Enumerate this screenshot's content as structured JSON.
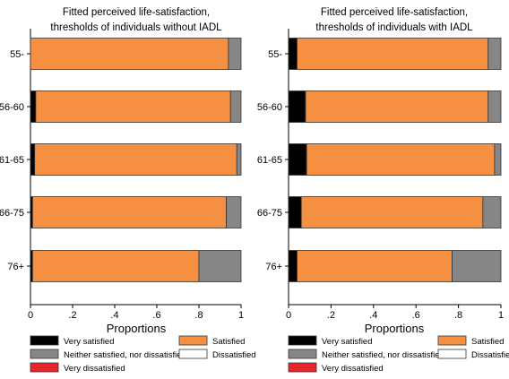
{
  "chart_data": [
    {
      "type": "bar",
      "orientation": "horizontal",
      "stacked": true,
      "title": "Fitted perceived life-satisfaction,",
      "subtitle": "thresholds of individuals without IADL",
      "xlabel": "Proportions",
      "ylabel": "",
      "xlim": [
        0,
        1
      ],
      "xticks": [
        "0",
        ".2",
        ".4",
        ".6",
        ".8",
        "1"
      ],
      "categories": [
        "55-",
        "56-60",
        "61-65",
        "66-75",
        "76+"
      ],
      "series": [
        {
          "name": "Very satisfied",
          "values": [
            0.0,
            0.025,
            0.02,
            0.01,
            0.01
          ]
        },
        {
          "name": "Satisfied",
          "values": [
            0.94,
            0.925,
            0.96,
            0.92,
            0.79
          ]
        },
        {
          "name": "Neither satisfied, nor dissatisfied",
          "values": [
            0.06,
            0.05,
            0.02,
            0.07,
            0.2
          ]
        },
        {
          "name": "Dissatisfied",
          "values": [
            0.0,
            0.0,
            0.0,
            0.0,
            0.0
          ]
        },
        {
          "name": "Very dissatisfied",
          "values": [
            0.0,
            0.0,
            0.0,
            0.0,
            0.0
          ]
        }
      ],
      "grid": false,
      "legend": "bottom"
    },
    {
      "type": "bar",
      "orientation": "horizontal",
      "stacked": true,
      "title": "Fitted perceived life-satisfaction,",
      "subtitle": "thresholds of individuals with IADL",
      "xlabel": "Proportions",
      "ylabel": "",
      "xlim": [
        0,
        1
      ],
      "xticks": [
        "0",
        ".2",
        ".4",
        ".6",
        ".8",
        "1"
      ],
      "categories": [
        "55-",
        "56-60",
        "61-65",
        "66-75",
        "76+"
      ],
      "series": [
        {
          "name": "Very satisfied",
          "values": [
            0.04,
            0.08,
            0.085,
            0.06,
            0.04
          ]
        },
        {
          "name": "Satisfied",
          "values": [
            0.9,
            0.86,
            0.885,
            0.855,
            0.73
          ]
        },
        {
          "name": "Neither satisfied, nor dissatisfied",
          "values": [
            0.06,
            0.06,
            0.03,
            0.085,
            0.23
          ]
        },
        {
          "name": "Dissatisfied",
          "values": [
            0.0,
            0.0,
            0.0,
            0.0,
            0.0
          ]
        },
        {
          "name": "Very dissatisfied",
          "values": [
            0.0,
            0.0,
            0.0,
            0.0,
            0.0
          ]
        }
      ],
      "grid": false,
      "legend": "bottom"
    }
  ],
  "colors": {
    "Very satisfied": "#000000",
    "Satisfied": "#f59042",
    "Neither satisfied, nor dissatisfied": "#868686",
    "Dissatisfied": "#ffffff",
    "Very dissatisfied": "#e8262e"
  }
}
